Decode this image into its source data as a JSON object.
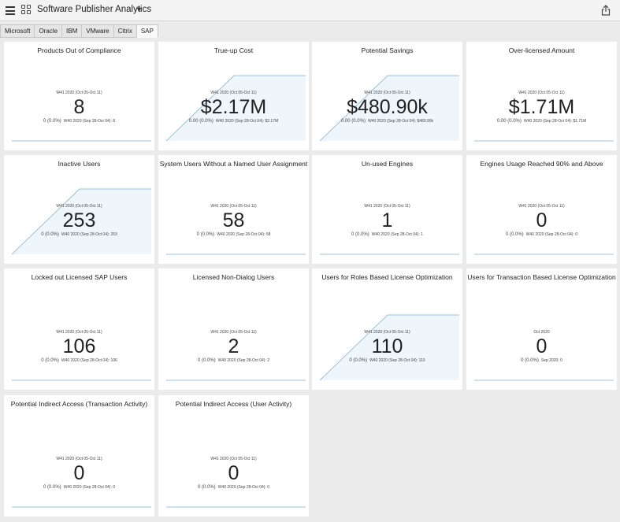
{
  "app": {
    "title": "Software Publisher Analytics",
    "icons": [
      "menu-icon",
      "apps-grid-icon",
      "caret-down-icon",
      "share-icon"
    ]
  },
  "tabs": [
    {
      "label": "Microsoft"
    },
    {
      "label": "Oracle"
    },
    {
      "label": "IBM"
    },
    {
      "label": "VMware"
    },
    {
      "label": "Citrix"
    },
    {
      "label": "SAP",
      "active": true
    }
  ],
  "colors": {
    "accent_line": "#7fb2c9",
    "area_fill": "#eef6fc",
    "area_line": "#7fb2c9"
  },
  "cards": [
    {
      "name": "products-out-of-compliance",
      "title": "Products Out of Compliance",
      "period": "W41 2020 (Oct 05-Oct 11)",
      "value": "8",
      "delta": "0 (0.0%)",
      "prior": "W40 2020 (Sep 28-Oct 04): 8",
      "trend": "flat"
    },
    {
      "name": "true-up-cost",
      "title": "True-up Cost",
      "period": "W41 2020 (Oct 05-Oct 11)",
      "value": "$2.17M",
      "delta": "0.00 (0.0%)",
      "prior": "W40 2020 (Sep 28-Oct 04): $2.17M",
      "trend": "rising"
    },
    {
      "name": "potential-savings",
      "title": "Potential Savings",
      "period": "W41 2020 (Oct 05-Oct 11)",
      "value": "$480.90k",
      "delta": "0.00 (0.0%)",
      "prior": "W40 2020 (Sep 28-Oct 04): $480.90k",
      "trend": "rising"
    },
    {
      "name": "over-licensed-amount",
      "title": "Over-licensed Amount",
      "period": "W41 2020 (Oct 05-Oct 11)",
      "value": "$1.71M",
      "delta": "0.00 (0.0%)",
      "prior": "W40 2020 (Sep 28-Oct 04): $1.71M",
      "trend": "flat"
    },
    {
      "name": "inactive-users",
      "title": "Inactive Users",
      "period": "W41 2020 (Oct 05-Oct 11)",
      "value": "253",
      "delta": "0 (0.0%)",
      "prior": "W40 2020 (Sep 28-Oct 04): 253",
      "trend": "rising"
    },
    {
      "name": "system-users-without-named-assignment",
      "title": "System Users Without a Named User Assignment",
      "period": "W41 2020 (Oct 05-Oct 11)",
      "value": "58",
      "delta": "0 (0.0%)",
      "prior": "W40 2020 (Sep 28-Oct 04): 58",
      "trend": "flat"
    },
    {
      "name": "un-used-engines",
      "title": "Un-used Engines",
      "period": "W41 2020 (Oct 05-Oct 11)",
      "value": "1",
      "delta": "0 (0.0%)",
      "prior": "W40 2020 (Sep 28-Oct 04): 1",
      "trend": "flat"
    },
    {
      "name": "engines-usage-90-and-above",
      "title": "Engines Usage Reached 90% and Above",
      "period": "W41 2020 (Oct 05-Oct 11)",
      "value": "0",
      "delta": "0 (0.0%)",
      "prior": "W40 2020 (Sep 28-Oct 04): 0",
      "trend": "flat"
    },
    {
      "name": "locked-out-licensed-sap-users",
      "title": "Locked out Licensed SAP Users",
      "period": "W41 2020 (Oct 05-Oct 11)",
      "value": "106",
      "delta": "0 (0.0%)",
      "prior": "W40 2020 (Sep 28-Oct 04): 106",
      "trend": "flat"
    },
    {
      "name": "licensed-non-dialog-users",
      "title": "Licensed Non-Dialog Users",
      "period": "W41 2020 (Oct 05-Oct 11)",
      "value": "2",
      "delta": "0 (0.0%)",
      "prior": "W40 2020 (Sep 28-Oct 04): 2",
      "trend": "flat"
    },
    {
      "name": "users-roles-based-license-optimization",
      "title": "Users for Roles Based License Optimization",
      "period": "W41 2020 (Oct 05-Oct 11)",
      "value": "110",
      "delta": "0 (0.0%)",
      "prior": "W40 2020 (Sep 28-Oct 04): 110",
      "trend": "rising"
    },
    {
      "name": "users-transaction-based-license-optimization",
      "title": "Users for Transaction Based License Optimization",
      "period": "Oct 2020",
      "value": "0",
      "delta": "0 (0.0%)",
      "prior": "Sep 2020: 0",
      "trend": "flat"
    },
    {
      "name": "potential-indirect-access-transaction",
      "title": "Potential Indirect Access (Transaction Activity)",
      "period": "W41 2020 (Oct 05-Oct 11)",
      "value": "0",
      "delta": "0 (0.0%)",
      "prior": "W40 2020 (Sep 28-Oct 04): 0",
      "trend": "flat"
    },
    {
      "name": "potential-indirect-access-user",
      "title": "Potential Indirect Access (User Activity)",
      "period": "W41 2020 (Oct 05-Oct 11)",
      "value": "0",
      "delta": "0 (0.0%)",
      "prior": "W40 2020 (Sep 28-Oct 04): 0",
      "trend": "flat"
    }
  ]
}
